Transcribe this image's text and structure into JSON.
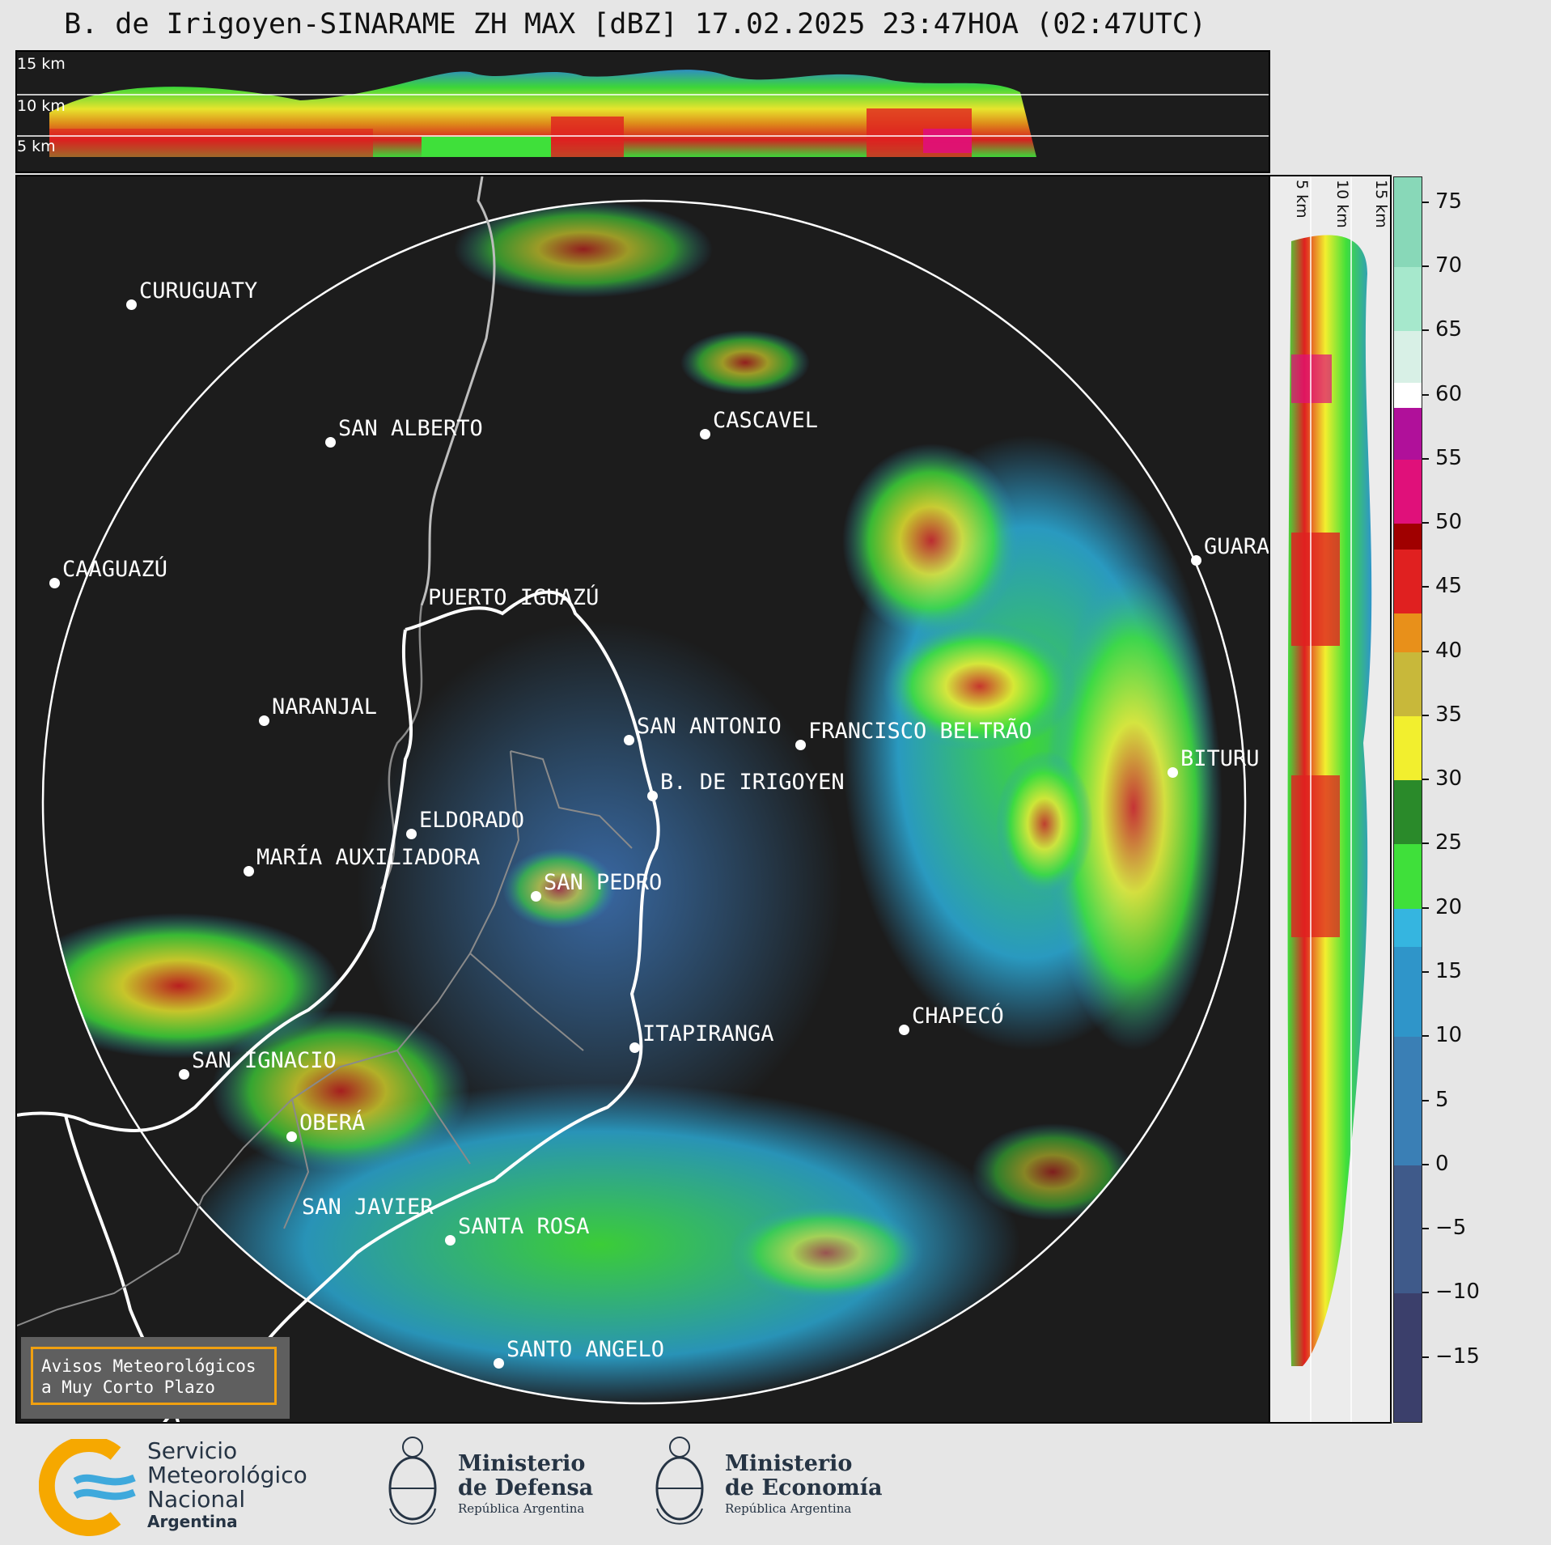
{
  "title": "B. de Irigoyen-SINARAME ZH MAX [dBZ] 17.02.2025 23:47HOA (02:47UTC)",
  "top_panel": {
    "altitude_labels": [
      "15 km",
      "10 km",
      "5 km"
    ]
  },
  "side_panel": {
    "altitude_labels": [
      "5 km",
      "10 km",
      "15 km"
    ]
  },
  "colorbar": {
    "unit": "dBZ",
    "range": [
      -20,
      77
    ],
    "ticks": [
      "75",
      "70",
      "65",
      "60",
      "55",
      "50",
      "45",
      "40",
      "35",
      "30",
      "25",
      "20",
      "15",
      "10",
      "5",
      "0",
      "−5",
      "−10",
      "−15"
    ],
    "tick_values": [
      75,
      70,
      65,
      60,
      55,
      50,
      45,
      40,
      35,
      30,
      25,
      20,
      15,
      10,
      5,
      0,
      -5,
      -10,
      -15
    ],
    "stops": [
      {
        "from": -20,
        "to": -10,
        "color": "#3b3f6b"
      },
      {
        "from": -10,
        "to": 0,
        "color": "#3f5a8a"
      },
      {
        "from": 0,
        "to": 10,
        "color": "#3a7fb5"
      },
      {
        "from": 10,
        "to": 17,
        "color": "#2f95c9"
      },
      {
        "from": 17,
        "to": 20,
        "color": "#35b5e0"
      },
      {
        "from": 20,
        "to": 25,
        "color": "#3fe03a"
      },
      {
        "from": 25,
        "to": 30,
        "color": "#2a8a2a"
      },
      {
        "from": 30,
        "to": 35,
        "color": "#f2ef2e"
      },
      {
        "from": 35,
        "to": 40,
        "color": "#c8b83a"
      },
      {
        "from": 40,
        "to": 43,
        "color": "#e8901a"
      },
      {
        "from": 43,
        "to": 48,
        "color": "#e02020"
      },
      {
        "from": 48,
        "to": 50,
        "color": "#a00000"
      },
      {
        "from": 50,
        "to": 55,
        "color": "#e0107a"
      },
      {
        "from": 55,
        "to": 59,
        "color": "#b0109a"
      },
      {
        "from": 59,
        "to": 61,
        "color": "#ffffff"
      },
      {
        "from": 61,
        "to": 65,
        "color": "#d8f0e6"
      },
      {
        "from": 65,
        "to": 70,
        "color": "#a6e8cc"
      },
      {
        "from": 70,
        "to": 77,
        "color": "#88d8b8"
      }
    ]
  },
  "cities": [
    {
      "name": "CURUGUATY"
    },
    {
      "name": "SAN ALBERTO"
    },
    {
      "name": "CASCAVEL"
    },
    {
      "name": "CAAGUAZÚ"
    },
    {
      "name": "GUARA"
    },
    {
      "name": "PUERTO IGUAZÚ"
    },
    {
      "name": "NARANJAL"
    },
    {
      "name": "SAN ANTONIO"
    },
    {
      "name": "FRANCISCO BELTRÃO"
    },
    {
      "name": "BITURU"
    },
    {
      "name": "B. DE IRIGOYEN"
    },
    {
      "name": "ELDORADO"
    },
    {
      "name": "MARÍA AUXILIADORA"
    },
    {
      "name": "SAN PEDRO"
    },
    {
      "name": "CHAPECÓ"
    },
    {
      "name": "ITAPIRANGA"
    },
    {
      "name": "SAN IGNACIO"
    },
    {
      "name": "OBERÁ"
    },
    {
      "name": "SAN JAVIER"
    },
    {
      "name": "SANTA ROSA"
    },
    {
      "name": "SANTO ANGELO"
    }
  ],
  "notice": {
    "line1": "Avisos Meteorológicos",
    "line2": "a Muy Corto Plazo"
  },
  "footer": {
    "smn": {
      "line1": "Servicio",
      "line2": "Meteorológico",
      "line3": "Nacional",
      "line4": "Argentina"
    },
    "defensa": {
      "line1": "Ministerio",
      "line2": "de Defensa",
      "line3": "República Argentina"
    },
    "economia": {
      "line1": "Ministerio",
      "line2": "de Economía",
      "line3": "República Argentina"
    }
  },
  "colors": {
    "background": "#1c1c1c",
    "page": "#e6e6e6",
    "border_line": "#ffffff",
    "province_line": "#8a8a8a",
    "notice_border": "#f0a010"
  }
}
